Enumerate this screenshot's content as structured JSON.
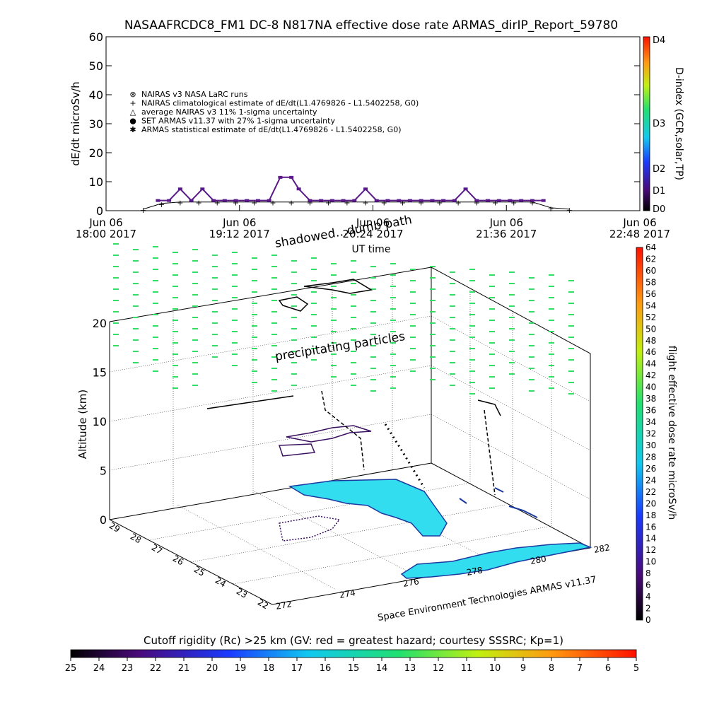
{
  "title": "NASAAFRCDC8_FM1 DC-8   N817NA effective dose rate ARMAS_dirIP_Report_59780",
  "top_chart": {
    "ylabel": "dE/dt microSv/h",
    "xlabel": "UT time",
    "right_label": "D-index (GCR,solar,TP)",
    "annotation": "shadowed…dumb path",
    "legend": [
      {
        "marker": "⊗",
        "text": "NAIRAS v3 NASA LaRC runs"
      },
      {
        "marker": "+",
        "text": "NAIRAS climatological estimate of dE/dt(L1.4769826 - L1.5402258, G0)"
      },
      {
        "marker": "△",
        "text": "average NAIRAS v3 11% 1-sigma uncertainty"
      },
      {
        "marker": "●",
        "text": "SET ARMAS v11.37 with 27% 1-sigma uncertainty"
      },
      {
        "marker": "✱",
        "text": "ARMAS statistical estimate of dE/dt(L1.4769826 - L1.5402258, G0)"
      }
    ],
    "yticks": [
      "0",
      "10",
      "20",
      "30",
      "40",
      "50",
      "60"
    ],
    "xticks": [
      {
        "l1": "Jun 06",
        "l2": "18:00 2017"
      },
      {
        "l1": "Jun 06",
        "l2": "19:12 2017"
      },
      {
        "l1": "Jun 06",
        "l2": "20:24 2017"
      },
      {
        "l1": "Jun 06",
        "l2": "21:36 2017"
      },
      {
        "l1": "Jun 06",
        "l2": "22:48 2017"
      }
    ],
    "dindex_ticks": [
      "D0",
      "D1",
      "D2",
      "D3",
      "D4"
    ]
  },
  "chart_data": [
    {
      "type": "scatter",
      "title": "NASAAFRCDC8_FM1 DC-8   N817NA effective dose rate ARMAS_dirIP_Report_59780",
      "xlabel": "UT time",
      "ylabel": "dE/dt microSv/h",
      "x_unit": "minutes after Jun 06 18:00 2017",
      "ylim": [
        0,
        60
      ],
      "xlim": [
        0,
        288
      ],
      "series": [
        {
          "name": "SET ARMAS v11.37 with 27% 1-sigma uncertainty",
          "x": [
            28,
            34,
            40,
            46,
            52,
            58,
            64,
            70,
            76,
            82,
            88,
            94,
            100,
            104,
            110,
            116,
            122,
            128,
            134,
            140,
            146,
            152,
            158,
            164,
            170,
            176,
            182,
            188,
            194,
            200,
            206,
            212,
            218,
            224,
            230,
            236
          ],
          "y": [
            3.5,
            3.5,
            7.5,
            3.5,
            7.5,
            3.5,
            3.5,
            3.5,
            3.5,
            3.5,
            3.5,
            11.5,
            11.5,
            7.5,
            3.5,
            3.5,
            3.5,
            3.5,
            3.5,
            7.5,
            3.5,
            3.5,
            3.5,
            3.5,
            3.5,
            3.5,
            3.5,
            3.5,
            7.5,
            3.5,
            3.5,
            3.5,
            3.5,
            3.5,
            3.5,
            3.5
          ]
        },
        {
          "name": "NAIRAS climatological estimate of dE/dt(L1.4769826 - L1.5402258, G0)",
          "x": [
            20,
            30,
            40,
            50,
            60,
            70,
            80,
            90,
            100,
            110,
            120,
            130,
            140,
            150,
            160,
            170,
            180,
            190,
            200,
            210,
            220,
            230,
            240,
            250
          ],
          "y": [
            0.5,
            2.5,
            3,
            3,
            3,
            3,
            3,
            3,
            3,
            3,
            3,
            3,
            3,
            3,
            3,
            3,
            3,
            3,
            3,
            3,
            3,
            3,
            1,
            0.5
          ]
        }
      ]
    },
    {
      "type": "scatter",
      "title": "",
      "ylabel": "Altitude (km)",
      "zlim": [
        0,
        20
      ],
      "ztick_labels": [
        "0",
        "5",
        "10",
        "15",
        "20"
      ],
      "lon_ticks": [
        "272",
        "274",
        "276",
        "278",
        "280",
        "282"
      ],
      "lat_ticks": [
        "22",
        "23",
        "24",
        "25",
        "26",
        "27",
        "28",
        "29"
      ],
      "annotations": [
        "precipitating particles",
        "shadowed…dumb path"
      ],
      "credit": "Space Environment Technologies ARMAS v11.37"
    }
  ],
  "colorbar_right": {
    "label": "flight effective dose rate microSv/h",
    "ticks": [
      "0",
      "2",
      "4",
      "6",
      "8",
      "10",
      "12",
      "14",
      "16",
      "18",
      "20",
      "22",
      "24",
      "26",
      "28",
      "30",
      "32",
      "34",
      "36",
      "38",
      "40",
      "42",
      "44",
      "46",
      "48",
      "50",
      "52",
      "54",
      "56",
      "58",
      "60",
      "62",
      "64"
    ]
  },
  "colorbar_bottom": {
    "title": "Cutoff rigidity (Rc) >25 km (GV: red = greatest hazard; courtesy SSSRC; Kp=1)",
    "ticks": [
      "25",
      "24",
      "23",
      "22",
      "21",
      "20",
      "19",
      "18",
      "17",
      "16",
      "15",
      "14",
      "13",
      "12",
      "11",
      "10",
      "9",
      "8",
      "7",
      "6",
      "5"
    ]
  },
  "colors": {
    "armas": "#5a1a8a",
    "nairas": "#000000",
    "land": "#33ddf0",
    "coast": "#1a3aa0",
    "particles": "#33dd66"
  }
}
